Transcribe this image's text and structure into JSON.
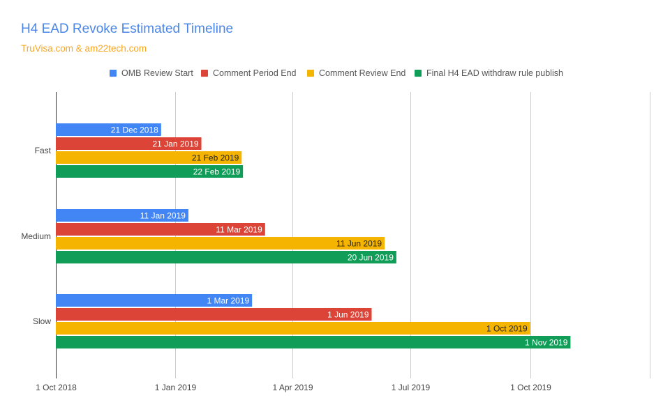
{
  "title": "H4 EAD Revoke Estimated Timeline",
  "subtitle": "TruVisa.com & am22tech.com",
  "chart_data": {
    "type": "bar",
    "orientation": "horizontal",
    "title": "H4 EAD Revoke Estimated Timeline",
    "subtitle": "TruVisa.com & am22tech.com",
    "categories": [
      "Fast",
      "Medium",
      "Slow"
    ],
    "x_axis": {
      "min": "2018-10-01",
      "max": "2020-01-01",
      "ticks": [
        {
          "value": "2018-10-01",
          "label": "1 Oct 2018"
        },
        {
          "value": "2019-01-01",
          "label": "1 Jan 2019"
        },
        {
          "value": "2019-04-01",
          "label": "1 Apr 2019"
        },
        {
          "value": "2019-07-01",
          "label": "1 Jul 2019"
        },
        {
          "value": "2019-10-01",
          "label": "1 Oct 2019"
        },
        {
          "value": "2020-01-01",
          "label": ""
        }
      ]
    },
    "grid": true,
    "legend_position": "top",
    "series": [
      {
        "name": "OMB Review Start",
        "color": "#4285f4",
        "label_color": "#ffffff",
        "values": [
          "2018-12-21",
          "2019-01-11",
          "2019-03-01"
        ],
        "labels": [
          "21 Dec 2018",
          "11 Jan 2019",
          "1 Mar 2019"
        ]
      },
      {
        "name": "Comment Period End",
        "color": "#db4437",
        "label_color": "#ffffff",
        "values": [
          "2019-01-21",
          "2019-03-11",
          "2019-06-01"
        ],
        "labels": [
          "21 Jan 2019",
          "11 Mar 2019",
          "1 Jun 2019"
        ]
      },
      {
        "name": "Comment Review End",
        "color": "#f4b400",
        "label_color": "#222222",
        "values": [
          "2019-02-21",
          "2019-06-11",
          "2019-10-01"
        ],
        "labels": [
          "21 Feb 2019",
          "11 Jun 2019",
          "1 Oct 2019"
        ]
      },
      {
        "name": "Final H4 EAD withdraw rule publish",
        "color": "#0f9d58",
        "label_color": "#ffffff",
        "values": [
          "2019-02-22",
          "2019-06-20",
          "2019-11-01"
        ],
        "labels": [
          "22 Feb 2019",
          "20 Jun 2019",
          "1 Nov 2019"
        ]
      }
    ]
  }
}
